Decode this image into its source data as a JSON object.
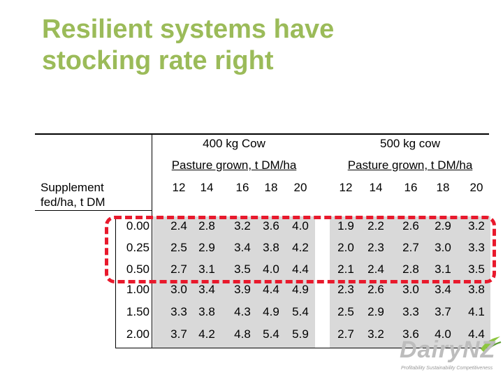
{
  "title": {
    "line1": "Resilient systems have",
    "line2": "stocking rate right"
  },
  "table": {
    "groups": [
      {
        "heading": "400 kg Cow",
        "subheading": "Pasture grown, t DM/ha",
        "pasture": [
          "12",
          "14",
          "16",
          "18",
          "20"
        ]
      },
      {
        "heading": "500 kg cow",
        "subheading": "Pasture grown, t DM/ha",
        "pasture": [
          "12",
          "14",
          "16",
          "18",
          "20"
        ]
      }
    ],
    "row_label": "Supplement fed/ha, t DM",
    "rows": [
      {
        "supplement": "0.00",
        "cow400": [
          "2.4",
          "2.8",
          "3.2",
          "3.6",
          "4.0"
        ],
        "cow500": [
          "1.9",
          "2.2",
          "2.6",
          "2.9",
          "3.2"
        ]
      },
      {
        "supplement": "0.25",
        "cow400": [
          "2.5",
          "2.9",
          "3.4",
          "3.8",
          "4.2"
        ],
        "cow500": [
          "2.0",
          "2.3",
          "2.7",
          "3.0",
          "3.3"
        ]
      },
      {
        "supplement": "0.50",
        "cow400": [
          "2.7",
          "3.1",
          "3.5",
          "4.0",
          "4.4"
        ],
        "cow500": [
          "2.1",
          "2.4",
          "2.8",
          "3.1",
          "3.5"
        ]
      },
      {
        "supplement": "1.00",
        "cow400": [
          "3.0",
          "3.4",
          "3.9",
          "4.4",
          "4.9"
        ],
        "cow500": [
          "2.3",
          "2.6",
          "3.0",
          "3.4",
          "3.8"
        ]
      },
      {
        "supplement": "1.50",
        "cow400": [
          "3.3",
          "3.8",
          "4.3",
          "4.9",
          "5.4"
        ],
        "cow500": [
          "2.5",
          "2.9",
          "3.3",
          "3.7",
          "4.1"
        ]
      },
      {
        "supplement": "2.00",
        "cow400": [
          "3.7",
          "4.2",
          "4.8",
          "5.4",
          "5.9"
        ],
        "cow500": [
          "2.7",
          "3.2",
          "3.6",
          "4.0",
          "4.4"
        ]
      }
    ],
    "highlight_color": "#E8192C",
    "shade_color": "#D9D9D9"
  },
  "logo": {
    "text": "DairyNZ",
    "tagline": "Profitability Sustainability Competitiveness"
  }
}
